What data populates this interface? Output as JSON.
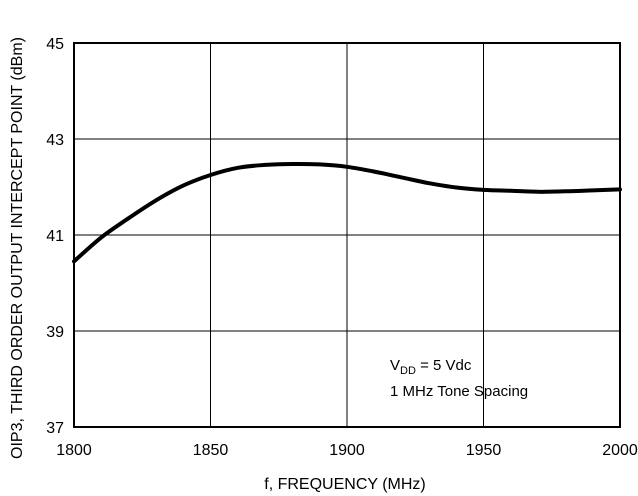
{
  "chart_data": {
    "type": "line",
    "title": "",
    "xlabel": "f, FREQUENCY (MHz)",
    "ylabel": "OIP3, THIRD ORDER OUTPUT INTERCEPT POINT (dBm)",
    "xlim": [
      1800,
      2000
    ],
    "ylim": [
      37,
      45
    ],
    "xticks": [
      1800,
      1850,
      1900,
      1950,
      2000
    ],
    "yticks": [
      37,
      39,
      41,
      43,
      45
    ],
    "grid": true,
    "series": [
      {
        "x": [
          1800,
          1810,
          1820,
          1830,
          1840,
          1850,
          1860,
          1870,
          1880,
          1890,
          1900,
          1910,
          1920,
          1930,
          1940,
          1950,
          1960,
          1970,
          1980,
          1990,
          2000
        ],
        "values": [
          40.45,
          40.95,
          41.35,
          41.72,
          42.03,
          42.25,
          42.4,
          42.46,
          42.48,
          42.47,
          42.42,
          42.32,
          42.2,
          42.08,
          41.99,
          41.94,
          41.92,
          41.9,
          41.91,
          41.93,
          41.95
        ]
      }
    ],
    "annotations": {
      "vdd_prefix": "V",
      "vdd_subscript": "DD",
      "vdd_rest": " = 5 Vdc",
      "tone_spacing": "1 MHz Tone Spacing"
    }
  }
}
